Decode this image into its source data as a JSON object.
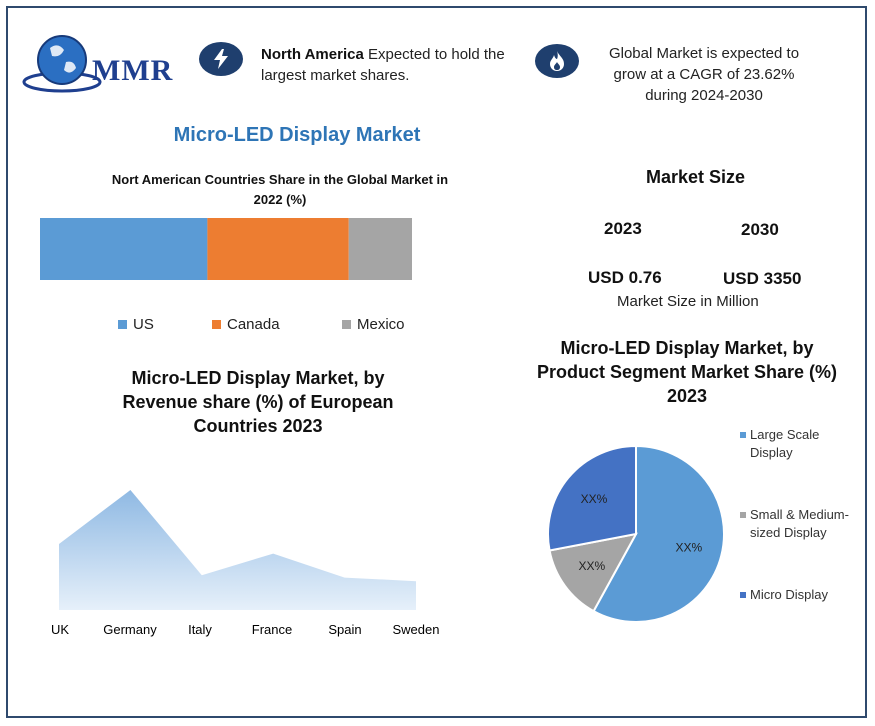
{
  "brand": {
    "logo_text": "MMR"
  },
  "highlights": [
    {
      "bold": "North America",
      "text": " Expected to hold the largest market shares.",
      "icon": "lightning-icon"
    },
    {
      "text": "Global Market is expected to grow at a CAGR of 23.62% during 2024-2030",
      "icon": "flame-icon"
    }
  ],
  "page_title": "Micro-LED Display Market",
  "market_size": {
    "title": "Market Size",
    "year_start": "2023",
    "year_end": "2030",
    "value_start": "USD 0.76",
    "value_end": "USD 3350",
    "note": "Market Size in Million"
  },
  "colors": {
    "us": "#5b9bd5",
    "canada": "#ed7d31",
    "mexico": "#a5a5a5",
    "area": "#9dc3e6",
    "pie_dark": "#4472c4",
    "pie_grey": "#a5a5a5",
    "pie_light": "#5b9bd5"
  },
  "chart_data": [
    {
      "type": "bar",
      "title": "Nort American Countries Share in the Global Market in 2022  (%)",
      "orientation": "horizontal-stacked",
      "series": [
        {
          "name": "US",
          "values": [
            45
          ]
        },
        {
          "name": "Canada",
          "values": [
            38
          ]
        },
        {
          "name": "Mexico",
          "values": [
            17
          ]
        }
      ],
      "legend": "bottom"
    },
    {
      "type": "area",
      "title": "Micro-LED Display Market, by Revenue share (%) of European Countries 2023",
      "categories": [
        "UK",
        "Germany",
        "Italy",
        "France",
        "Spain",
        "Sweden"
      ],
      "values": [
        55,
        100,
        29,
        47,
        27,
        24
      ],
      "ylim": [
        0,
        100
      ],
      "grid": false
    },
    {
      "type": "pie",
      "title": "Micro-LED Display Market, by Product  Segment Market Share (%) 2023",
      "slices": [
        {
          "name": "Large Scale Display",
          "value": 58,
          "label": "XX%"
        },
        {
          "name": "Small & Medium-sized Display",
          "value": 14,
          "label": "XX%"
        },
        {
          "name": "Micro Display",
          "value": 28,
          "label": "XX%"
        }
      ],
      "legend": "right"
    }
  ]
}
